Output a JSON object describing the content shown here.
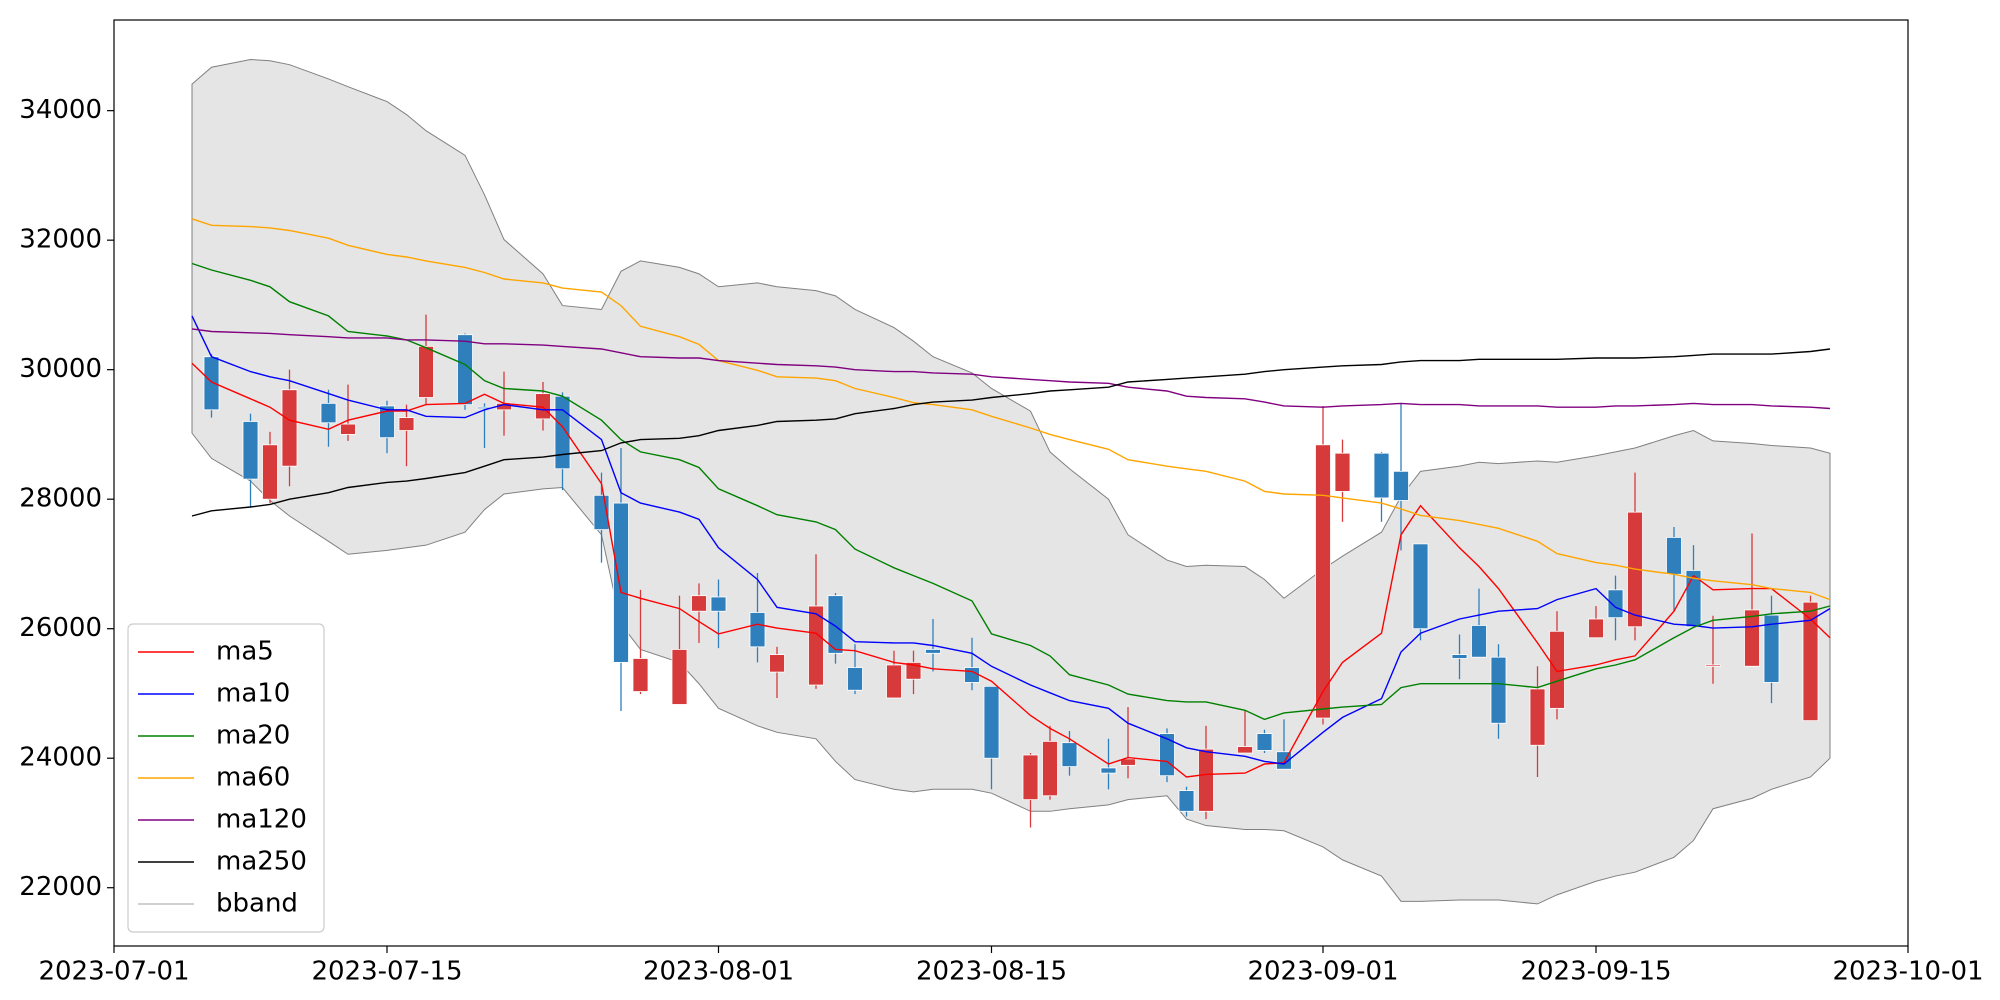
{
  "chart_data": {
    "type": "candlestick",
    "x": [
      "2023-07-05",
      "2023-07-06",
      "2023-07-08",
      "2023-07-09",
      "2023-07-10",
      "2023-07-12",
      "2023-07-13",
      "2023-07-15",
      "2023-07-16",
      "2023-07-17",
      "2023-07-19",
      "2023-07-20",
      "2023-07-21",
      "2023-07-23",
      "2023-07-24",
      "2023-07-26",
      "2023-07-27",
      "2023-07-28",
      "2023-07-30",
      "2023-07-31",
      "2023-08-01",
      "2023-08-03",
      "2023-08-04",
      "2023-08-06",
      "2023-08-07",
      "2023-08-08",
      "2023-08-10",
      "2023-08-11",
      "2023-08-12",
      "2023-08-14",
      "2023-08-15",
      "2023-08-17",
      "2023-08-18",
      "2023-08-19",
      "2023-08-21",
      "2023-08-22",
      "2023-08-24",
      "2023-08-25",
      "2023-08-26",
      "2023-08-28",
      "2023-08-29",
      "2023-08-30",
      "2023-09-01",
      "2023-09-02",
      "2023-09-04",
      "2023-09-05",
      "2023-09-06",
      "2023-09-08",
      "2023-09-09",
      "2023-09-10",
      "2023-09-12",
      "2023-09-13",
      "2023-09-15",
      "2023-09-16",
      "2023-09-17",
      "2023-09-19",
      "2023-09-20",
      "2023-09-21",
      "2023-09-23",
      "2023-09-24",
      "2023-09-26",
      "2023-09-27"
    ],
    "open": [
      null,
      30200,
      29200,
      28000,
      28510,
      29480,
      29000,
      29440,
      29060,
      29570,
      30540,
      29420,
      29380,
      29240,
      29590,
      28060,
      27940,
      25030,
      24830,
      26270,
      26490,
      26250,
      25330,
      25130,
      26510,
      25400,
      24930,
      25220,
      25680,
      25400,
      25110,
      23360,
      23420,
      24240,
      23850,
      23890,
      24380,
      23500,
      23180,
      24080,
      24380,
      24100,
      24620,
      28120,
      28710,
      28430,
      27310,
      25600,
      26050,
      25560,
      24200,
      24770,
      25860,
      26600,
      26030,
      27410,
      26900,
      25420,
      25420,
      26210,
      24580,
      null
    ],
    "high": [
      null,
      30240,
      29320,
      29040,
      30000,
      29690,
      29770,
      29520,
      29460,
      30850,
      30560,
      29480,
      29970,
      29810,
      29650,
      28410,
      28790,
      26600,
      26510,
      26700,
      26760,
      26860,
      25720,
      27150,
      26550,
      25760,
      25660,
      25660,
      26150,
      25860,
      25110,
      24080,
      24500,
      24420,
      24300,
      24790,
      24460,
      23560,
      24500,
      24740,
      24440,
      24600,
      29440,
      28920,
      28730,
      29480,
      27310,
      25910,
      26620,
      25760,
      25420,
      26270,
      26350,
      26820,
      28410,
      27570,
      27290,
      26200,
      27470,
      26510,
      26510,
      null
    ],
    "low": [
      null,
      29260,
      27880,
      27940,
      28200,
      28810,
      28900,
      28710,
      28510,
      29460,
      29380,
      28790,
      28980,
      29060,
      28140,
      27020,
      24730,
      24990,
      24830,
      25780,
      25700,
      25480,
      24930,
      25070,
      25460,
      24990,
      24930,
      24990,
      25340,
      25050,
      23520,
      22930,
      23360,
      23730,
      23520,
      23690,
      23630,
      23100,
      23060,
      24080,
      24080,
      23830,
      24520,
      27650,
      27650,
      27210,
      25820,
      25220,
      25560,
      24300,
      23710,
      24600,
      25860,
      25820,
      25820,
      26270,
      26030,
      25150,
      25420,
      24850,
      24580,
      null
    ],
    "close": [
      null,
      29380,
      28310,
      28840,
      29690,
      29180,
      29160,
      28950,
      29260,
      30360,
      29460,
      29400,
      29480,
      29630,
      28470,
      27530,
      25480,
      25540,
      25680,
      26510,
      26270,
      25720,
      25600,
      26350,
      25620,
      25050,
      25440,
      25480,
      25620,
      25170,
      24000,
      24050,
      24260,
      23870,
      23770,
      23990,
      23730,
      23180,
      24140,
      24180,
      24120,
      23830,
      28840,
      28710,
      28020,
      27980,
      26000,
      25540,
      25560,
      24540,
      25070,
      25960,
      26150,
      26170,
      27800,
      26840,
      26030,
      25440,
      26290,
      25170,
      26410,
      null
    ],
    "up_color": "#d63a3a",
    "down_color": "#2f7fbd",
    "series": [
      {
        "name": "ma5",
        "color": "#ff0000",
        "values": [
          30100,
          29810,
          29550,
          29420,
          29220,
          29080,
          29220,
          29360,
          29360,
          29460,
          29480,
          29620,
          29480,
          29420,
          29120,
          28240,
          26560,
          26470,
          26310,
          26110,
          25920,
          26070,
          26010,
          25930,
          25680,
          25660,
          25480,
          25440,
          25380,
          25340,
          25190,
          24660,
          24460,
          24300,
          23910,
          24010,
          23950,
          23710,
          23750,
          23770,
          23910,
          23930,
          25030,
          25480,
          25930,
          27450,
          27900,
          27250,
          26960,
          26620,
          25780,
          25340,
          25440,
          25520,
          25580,
          26270,
          26820,
          26600,
          26620,
          26620,
          26150,
          25860
        ]
      },
      {
        "name": "ma10",
        "color": "#0000ff",
        "values": [
          30830,
          30200,
          29970,
          29890,
          29830,
          29630,
          29530,
          29380,
          29380,
          29280,
          29260,
          29380,
          29460,
          29380,
          29380,
          28920,
          28100,
          27940,
          27800,
          27690,
          27250,
          26760,
          26330,
          26230,
          26040,
          25800,
          25780,
          25780,
          25740,
          25620,
          25420,
          25130,
          25010,
          24890,
          24770,
          24540,
          24300,
          24160,
          24100,
          24030,
          23950,
          23910,
          24400,
          24630,
          24920,
          25640,
          25930,
          26150,
          26210,
          26270,
          26310,
          26450,
          26620,
          26330,
          26210,
          26070,
          26050,
          26010,
          26030,
          26070,
          26130,
          26310
        ]
      },
      {
        "name": "ma20",
        "color": "#008000",
        "values": [
          31640,
          31540,
          31380,
          31280,
          31050,
          30830,
          30590,
          30520,
          30460,
          30340,
          30080,
          29830,
          29710,
          29670,
          29590,
          29220,
          28920,
          28730,
          28610,
          28490,
          28160,
          27900,
          27760,
          27650,
          27530,
          27230,
          26940,
          26820,
          26700,
          26430,
          25920,
          25740,
          25580,
          25290,
          25130,
          24990,
          24890,
          24870,
          24870,
          24740,
          24600,
          24700,
          24760,
          24790,
          24830,
          25090,
          25150,
          25150,
          25150,
          25150,
          25090,
          25190,
          25380,
          25440,
          25520,
          25860,
          26020,
          26130,
          26190,
          26230,
          26270,
          26350
        ]
      },
      {
        "name": "ma60",
        "color": "#ffa500",
        "values": [
          32330,
          32230,
          32210,
          32190,
          32150,
          32030,
          31920,
          31780,
          31740,
          31680,
          31580,
          31500,
          31400,
          31340,
          31260,
          31200,
          30990,
          30670,
          30510,
          30390,
          30140,
          29990,
          29890,
          29870,
          29830,
          29710,
          29570,
          29490,
          29460,
          29380,
          29280,
          29100,
          29000,
          28920,
          28770,
          28610,
          28510,
          28470,
          28430,
          28280,
          28120,
          28080,
          28060,
          28020,
          27940,
          27850,
          27750,
          27670,
          27610,
          27550,
          27350,
          27160,
          27020,
          26980,
          26920,
          26840,
          26780,
          26740,
          26680,
          26620,
          26560,
          26450
        ]
      },
      {
        "name": "ma120",
        "color": "#800080",
        "values": [
          30630,
          30590,
          30570,
          30560,
          30540,
          30510,
          30490,
          30490,
          30460,
          30460,
          30440,
          30400,
          30400,
          30380,
          30360,
          30320,
          30260,
          30200,
          30180,
          30180,
          30140,
          30100,
          30080,
          30060,
          30040,
          30000,
          29970,
          29970,
          29950,
          29930,
          29890,
          29850,
          29830,
          29810,
          29790,
          29730,
          29670,
          29590,
          29570,
          29550,
          29500,
          29440,
          29420,
          29440,
          29460,
          29480,
          29460,
          29460,
          29440,
          29440,
          29440,
          29420,
          29420,
          29440,
          29440,
          29460,
          29480,
          29460,
          29460,
          29440,
          29420,
          29400
        ]
      },
      {
        "name": "ma250",
        "color": "#000000",
        "values": [
          27740,
          27820,
          27880,
          27920,
          28000,
          28100,
          28180,
          28260,
          28280,
          28320,
          28410,
          28510,
          28610,
          28650,
          28690,
          28750,
          28870,
          28920,
          28940,
          28980,
          29060,
          29140,
          29200,
          29220,
          29240,
          29320,
          29400,
          29460,
          29500,
          29530,
          29570,
          29630,
          29670,
          29690,
          29730,
          29810,
          29850,
          29870,
          29890,
          29930,
          29970,
          30000,
          30040,
          30060,
          30080,
          30120,
          30140,
          30140,
          30160,
          30160,
          30160,
          30160,
          30180,
          30180,
          30180,
          30200,
          30220,
          30240,
          30240,
          30240,
          30280,
          30320
        ]
      }
    ],
    "bband": {
      "name": "bband",
      "color": "#808080",
      "fill": "#e5e5e5",
      "upper": [
        34410,
        34670,
        34790,
        34770,
        34710,
        34490,
        34370,
        34140,
        33940,
        33690,
        33310,
        32700,
        32010,
        31480,
        30990,
        30930,
        31520,
        31680,
        31580,
        31480,
        31280,
        31340,
        31280,
        31220,
        31140,
        30930,
        30650,
        30440,
        30200,
        29950,
        29710,
        29360,
        28730,
        28470,
        28000,
        27450,
        27060,
        26960,
        26980,
        26960,
        26760,
        26470,
        26920,
        27120,
        27490,
        28040,
        28430,
        28510,
        28570,
        28550,
        28590,
        28570,
        28670,
        28730,
        28790,
        28980,
        29060,
        28900,
        28860,
        28830,
        28790,
        28710
      ],
      "lower": [
        29020,
        28630,
        28280,
        27980,
        27740,
        27350,
        27150,
        27210,
        27250,
        27290,
        27490,
        27840,
        28080,
        28160,
        28180,
        27450,
        26070,
        25680,
        25480,
        25150,
        24770,
        24500,
        24400,
        24300,
        23950,
        23670,
        23520,
        23480,
        23520,
        23520,
        23460,
        23180,
        23180,
        23220,
        23280,
        23360,
        23420,
        23060,
        22960,
        22900,
        22900,
        22880,
        22630,
        22430,
        22180,
        21790,
        21790,
        21810,
        21810,
        21810,
        21750,
        21890,
        22100,
        22180,
        22240,
        22470,
        22730,
        23220,
        23380,
        23520,
        23710,
        24000
      ]
    },
    "xlim": [
      "2023-07-01",
      "2023-10-01"
    ],
    "xticks": [
      "2023-07-01",
      "2023-07-15",
      "2023-08-01",
      "2023-08-15",
      "2023-09-01",
      "2023-09-15",
      "2023-10-01"
    ],
    "ylim": [
      21100,
      35400
    ],
    "yticks": [
      22000,
      24000,
      26000,
      28000,
      30000,
      32000,
      34000
    ],
    "legend": "lower left"
  }
}
